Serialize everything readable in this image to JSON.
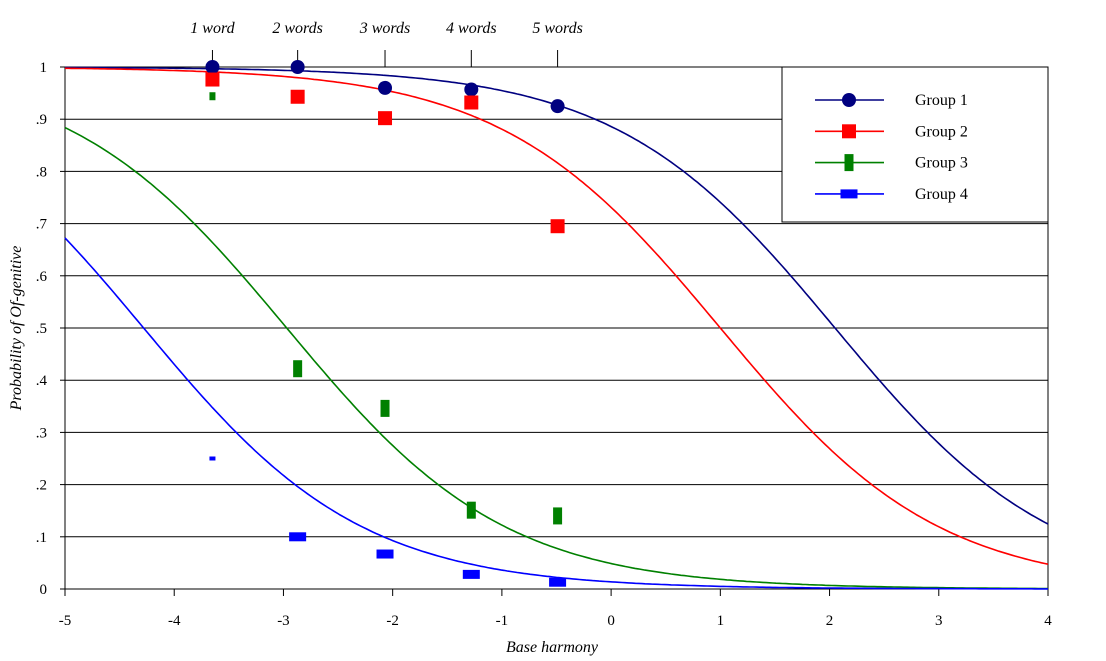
{
  "chart_data": {
    "type": "scatter",
    "title": "",
    "xlabel": "Base harmony",
    "ylabel": "Probability of Of-genitive",
    "xlim": [
      -5,
      4
    ],
    "ylim": [
      0,
      1
    ],
    "grid": "horizontal",
    "legend_position": "top-right",
    "x_ticks": [
      "-5",
      "-4",
      "-3",
      "-2",
      "-1",
      "0",
      "1",
      "2",
      "3",
      "4"
    ],
    "y_ticks": [
      "0",
      ".1",
      ".2",
      ".3",
      ".4",
      ".5",
      ".6",
      ".7",
      ".8",
      ".9",
      "1"
    ],
    "top_axis": {
      "labels": [
        "1 word",
        "2 words",
        "3 words",
        "4 words",
        "5 words"
      ],
      "x": [
        -3.65,
        -2.87,
        -2.07,
        -1.28,
        -0.49
      ]
    },
    "series": [
      {
        "name": "Group 1",
        "color": "#000080",
        "marker": "circle",
        "x": [
          -3.65,
          -2.87,
          -2.07,
          -1.28,
          -0.49
        ],
        "y": [
          1.0,
          1.0,
          0.96,
          0.957,
          0.925
        ],
        "fit": {
          "type": "logistic",
          "midpoint": 2.05,
          "slope": -1
        }
      },
      {
        "name": "Group 2",
        "color": "#ff0000",
        "marker": "square",
        "x": [
          -3.65,
          -2.87,
          -2.07,
          -1.28,
          -0.49
        ],
        "y": [
          0.976,
          0.943,
          0.902,
          0.932,
          0.695
        ],
        "fit": {
          "type": "logistic",
          "midpoint": 1.0,
          "slope": -1
        }
      },
      {
        "name": "Group 3",
        "color": "#008000",
        "marker": "tall-rect",
        "x": [
          -3.65,
          -2.87,
          -2.07,
          -1.28,
          -0.49
        ],
        "y": [
          0.944,
          0.422,
          0.346,
          0.151,
          0.14
        ],
        "fit": {
          "type": "logistic",
          "midpoint": -2.97,
          "slope": -1
        }
      },
      {
        "name": "Group 4",
        "color": "#0000ff",
        "marker": "wide-rect",
        "x": [
          -3.65,
          -2.87,
          -2.07,
          -1.28,
          -0.49
        ],
        "y": [
          0.25,
          0.1,
          0.067,
          0.028,
          0.013
        ],
        "fit": {
          "type": "logistic",
          "midpoint": -4.28,
          "slope": -1
        }
      }
    ]
  }
}
